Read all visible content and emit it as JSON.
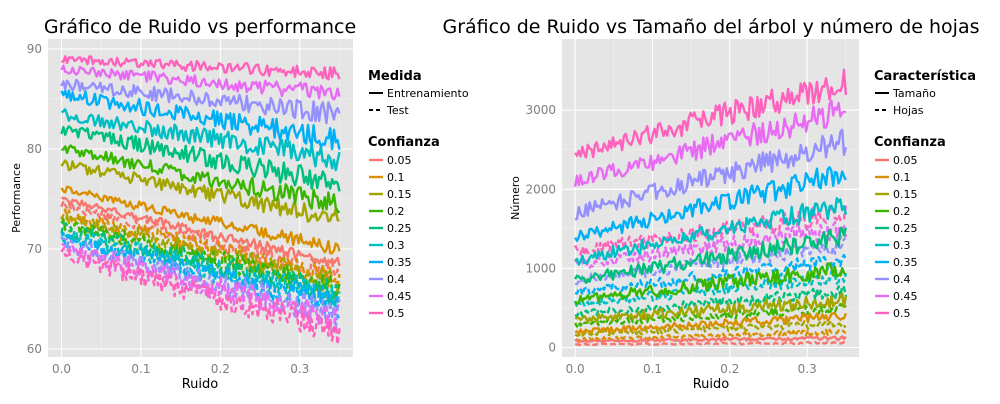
{
  "chart_data": [
    {
      "type": "line",
      "title": "Gráfico de Ruido vs performance",
      "xlabel": "Ruido",
      "ylabel": "Performance",
      "xlim": [
        -0.017,
        0.367
      ],
      "ylim": [
        59.2,
        91.0
      ],
      "xticks": [
        0.0,
        0.1,
        0.2,
        0.3
      ],
      "xtick_labels": [
        "0.0",
        "0.1",
        "0.2",
        "0.3"
      ],
      "yticks": [
        60,
        70,
        80,
        90
      ],
      "ytick_labels": [
        "60",
        "70",
        "80",
        "90"
      ],
      "grid": true,
      "x_range": [
        0.0,
        0.35
      ],
      "legend_linetype": {
        "title": "Medida",
        "items": [
          "Entrenamiento",
          "Test"
        ]
      },
      "legend_color": {
        "title": "Confianza",
        "items": [
          "0.05",
          "0.1",
          "0.15",
          "0.2",
          "0.25",
          "0.3",
          "0.35",
          "0.4",
          "0.45",
          "0.5"
        ]
      },
      "series": [
        {
          "confianza": "0.05",
          "medida": "Entrenamiento",
          "start": 75.0,
          "end": 68.5,
          "noise": 0.5
        },
        {
          "confianza": "0.1",
          "medida": "Entrenamiento",
          "start": 76.0,
          "end": 70.0,
          "noise": 0.6
        },
        {
          "confianza": "0.15",
          "medida": "Entrenamiento",
          "start": 78.5,
          "end": 73.0,
          "noise": 0.8
        },
        {
          "confianza": "0.2",
          "medida": "Entrenamiento",
          "start": 80.0,
          "end": 74.5,
          "noise": 0.9
        },
        {
          "confianza": "0.25",
          "medida": "Entrenamiento",
          "start": 82.0,
          "end": 76.5,
          "noise": 1.0
        },
        {
          "confianza": "0.3",
          "medida": "Entrenamiento",
          "start": 83.5,
          "end": 79.0,
          "noise": 1.0
        },
        {
          "confianza": "0.35",
          "medida": "Entrenamiento",
          "start": 85.5,
          "end": 81.0,
          "noise": 1.0
        },
        {
          "confianza": "0.4",
          "medida": "Entrenamiento",
          "start": 86.5,
          "end": 83.5,
          "noise": 0.9
        },
        {
          "confianza": "0.45",
          "medida": "Entrenamiento",
          "start": 88.0,
          "end": 85.5,
          "noise": 0.7
        },
        {
          "confianza": "0.5",
          "medida": "Entrenamiento",
          "start": 89.0,
          "end": 87.5,
          "noise": 0.6
        },
        {
          "confianza": "0.05",
          "medida": "Test",
          "start": 74.5,
          "end": 67.5,
          "noise": 0.9
        },
        {
          "confianza": "0.1",
          "medida": "Test",
          "start": 73.5,
          "end": 67.0,
          "noise": 1.0
        },
        {
          "confianza": "0.15",
          "medida": "Test",
          "start": 73.0,
          "end": 66.5,
          "noise": 1.1
        },
        {
          "confianza": "0.2",
          "medida": "Test",
          "start": 72.5,
          "end": 66.0,
          "noise": 1.1
        },
        {
          "confianza": "0.25",
          "medida": "Test",
          "start": 72.0,
          "end": 65.5,
          "noise": 1.2
        },
        {
          "confianza": "0.3",
          "medida": "Test",
          "start": 71.5,
          "end": 65.0,
          "noise": 1.2
        },
        {
          "confianza": "0.35",
          "medida": "Test",
          "start": 71.0,
          "end": 64.5,
          "noise": 1.2
        },
        {
          "confianza": "0.4",
          "medida": "Test",
          "start": 70.5,
          "end": 63.5,
          "noise": 1.3
        },
        {
          "confianza": "0.45",
          "medida": "Test",
          "start": 70.0,
          "end": 63.0,
          "noise": 1.3
        },
        {
          "confianza": "0.5",
          "medida": "Test",
          "start": 69.5,
          "end": 62.0,
          "noise": 1.4
        }
      ]
    },
    {
      "type": "line",
      "title": "Gráfico de Ruido vs Tamaño del árbol y número de hojas",
      "xlabel": "Ruido",
      "ylabel": "Número",
      "xlim": [
        -0.017,
        0.367
      ],
      "ylim": [
        -120,
        3900
      ],
      "xticks": [
        0.0,
        0.1,
        0.2,
        0.3
      ],
      "xtick_labels": [
        "0.0",
        "0.1",
        "0.2",
        "0.3"
      ],
      "yticks": [
        0,
        1000,
        2000,
        3000
      ],
      "ytick_labels": [
        "0",
        "1000",
        "2000",
        "3000"
      ],
      "grid": true,
      "x_range": [
        0.0,
        0.35
      ],
      "legend_linetype": {
        "title": "Característica",
        "items": [
          "Tamaño",
          "Hojas"
        ]
      },
      "legend_color": {
        "title": "Confianza",
        "items": [
          "0.05",
          "0.1",
          "0.15",
          "0.2",
          "0.25",
          "0.3",
          "0.35",
          "0.4",
          "0.45",
          "0.5"
        ]
      },
      "series": [
        {
          "confianza": "0.05",
          "medida": "Tamaño",
          "start": 80,
          "end": 120,
          "noise": 20
        },
        {
          "confianza": "0.1",
          "medida": "Tamaño",
          "start": 200,
          "end": 400,
          "noise": 50
        },
        {
          "confianza": "0.15",
          "medida": "Tamaño",
          "start": 350,
          "end": 600,
          "noise": 80
        },
        {
          "confianza": "0.2",
          "medida": "Tamaño",
          "start": 600,
          "end": 1000,
          "noise": 100
        },
        {
          "confianza": "0.25",
          "medida": "Tamaño",
          "start": 850,
          "end": 1400,
          "noise": 110
        },
        {
          "confianza": "0.3",
          "medida": "Tamaño",
          "start": 1100,
          "end": 1800,
          "noise": 120
        },
        {
          "confianza": "0.35",
          "medida": "Tamaño",
          "start": 1400,
          "end": 2200,
          "noise": 130
        },
        {
          "confianza": "0.4",
          "medida": "Tamaño",
          "start": 1700,
          "end": 2600,
          "noise": 140
        },
        {
          "confianza": "0.45",
          "medida": "Tamaño",
          "start": 2100,
          "end": 3000,
          "noise": 150
        },
        {
          "confianza": "0.5",
          "medida": "Tamaño",
          "start": 2450,
          "end": 3350,
          "noise": 160
        },
        {
          "confianza": "0.05",
          "medida": "Hojas",
          "start": 40,
          "end": 60,
          "noise": 12
        },
        {
          "confianza": "0.1",
          "medida": "Hojas",
          "start": 100,
          "end": 200,
          "noise": 30
        },
        {
          "confianza": "0.15",
          "medida": "Hojas",
          "start": 170,
          "end": 300,
          "noise": 45
        },
        {
          "confianza": "0.2",
          "medida": "Hojas",
          "start": 300,
          "end": 500,
          "noise": 60
        },
        {
          "confianza": "0.25",
          "medida": "Hojas",
          "start": 420,
          "end": 700,
          "noise": 70
        },
        {
          "confianza": "0.3",
          "medida": "Hojas",
          "start": 550,
          "end": 900,
          "noise": 80
        },
        {
          "confianza": "0.35",
          "medida": "Hojas",
          "start": 700,
          "end": 1100,
          "noise": 90
        },
        {
          "confianza": "0.4",
          "medida": "Hojas",
          "start": 850,
          "end": 1300,
          "noise": 100
        },
        {
          "confianza": "0.45",
          "medida": "Hojas",
          "start": 1050,
          "end": 1500,
          "noise": 110
        },
        {
          "confianza": "0.5",
          "medida": "Hojas",
          "start": 1220,
          "end": 1700,
          "noise": 120
        }
      ]
    }
  ],
  "colors": {
    "0.05": "#F8766D",
    "0.1": "#D89000",
    "0.15": "#A3A500",
    "0.2": "#39B600",
    "0.25": "#00BF7D",
    "0.3": "#00BFC4",
    "0.35": "#00B0F6",
    "0.4": "#9590FF",
    "0.45": "#E76BF3",
    "0.5": "#FF62BC"
  }
}
